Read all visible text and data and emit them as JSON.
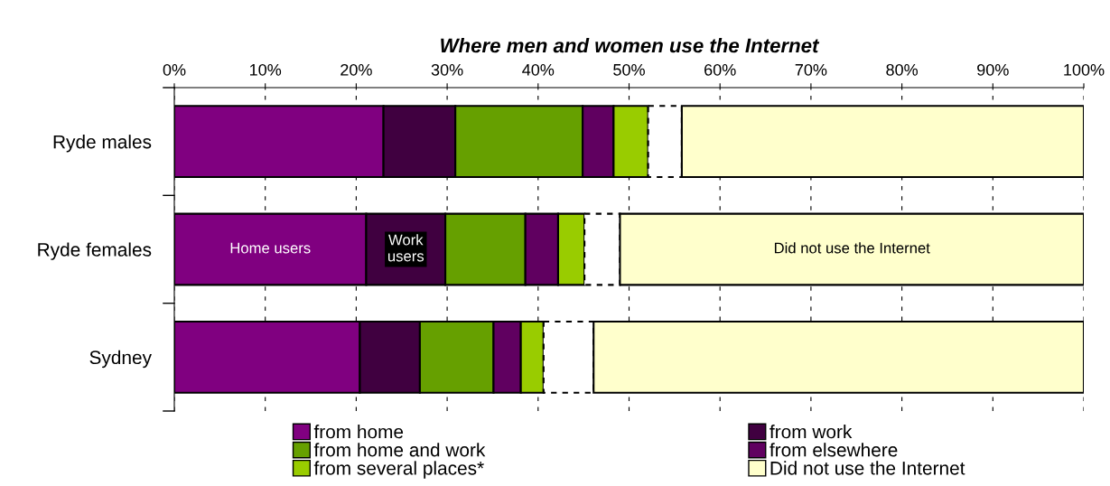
{
  "chart_data": {
    "type": "bar",
    "orientation": "horizontal",
    "stacked": true,
    "title": "Where men and women use the Internet",
    "categories": [
      "Ryde males",
      "Ryde females",
      "Sydney"
    ],
    "series": [
      {
        "name": "from home",
        "color": "#800080",
        "values": [
          23.0,
          21.1,
          20.4
        ]
      },
      {
        "name": "from work",
        "color": "#400040",
        "values": [
          7.9,
          8.7,
          6.6
        ]
      },
      {
        "name": "from home and work",
        "color": "#66a000",
        "values": [
          14.0,
          8.8,
          8.1
        ]
      },
      {
        "name": "from elsewhere",
        "color": "#600060",
        "values": [
          3.4,
          3.6,
          3.0
        ]
      },
      {
        "name": "from several places*",
        "color": "#99cc00",
        "values": [
          3.8,
          2.9,
          2.5
        ]
      },
      {
        "color": "#ffffff",
        "values": [
          3.7,
          3.9,
          5.5
        ]
      },
      {
        "name": "Did not use the Internet",
        "color": "#ffffcc",
        "values": [
          44.2,
          51.0,
          53.9
        ]
      }
    ],
    "xlim": [
      0,
      100
    ],
    "xticks": [
      {
        "value": 0,
        "label": "0%"
      },
      {
        "value": 10,
        "label": "10%"
      },
      {
        "value": 20,
        "label": "20%"
      },
      {
        "value": 30,
        "label": "30%"
      },
      {
        "value": 40,
        "label": "40%"
      },
      {
        "value": 50,
        "label": "50%"
      },
      {
        "value": 60,
        "label": "60%"
      },
      {
        "value": 70,
        "label": "70%"
      },
      {
        "value": 80,
        "label": "80%"
      },
      {
        "value": 90,
        "label": "90%"
      },
      {
        "value": 100,
        "label": "100%"
      }
    ],
    "grid": "x",
    "legend": "bottom",
    "annotations": [
      "Home users",
      "Work\nusers",
      "Did not use the Internet"
    ]
  }
}
